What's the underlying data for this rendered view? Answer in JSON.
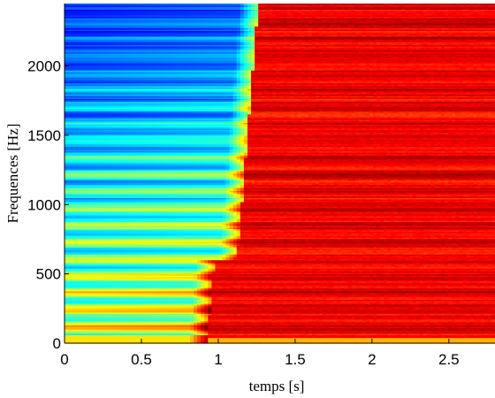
{
  "chart_data": {
    "type": "heatmap",
    "title": "",
    "xlabel": "temps [s]",
    "ylabel": "Frequences [Hz]",
    "xlim": [
      0,
      2.8
    ],
    "ylim": [
      0,
      2450
    ],
    "x_ticks": [
      0,
      0.5,
      1,
      1.5,
      2,
      2.5
    ],
    "x_tick_labels": [
      "0",
      "0.5",
      "1",
      "1.5",
      "2",
      "2.5"
    ],
    "y_ticks": [
      0,
      500,
      1000,
      1500,
      2000
    ],
    "y_tick_labels": [
      "0",
      "500",
      "1000",
      "1500",
      "2000"
    ],
    "colormap": "jet",
    "colormap_stops": [
      "#00008f",
      "#0000ff",
      "#00ffff",
      "#ffff00",
      "#ff0000",
      "#800000"
    ],
    "harmonic_spacing_hz": 122,
    "onset_time_s": 1.08,
    "grid": false
  }
}
